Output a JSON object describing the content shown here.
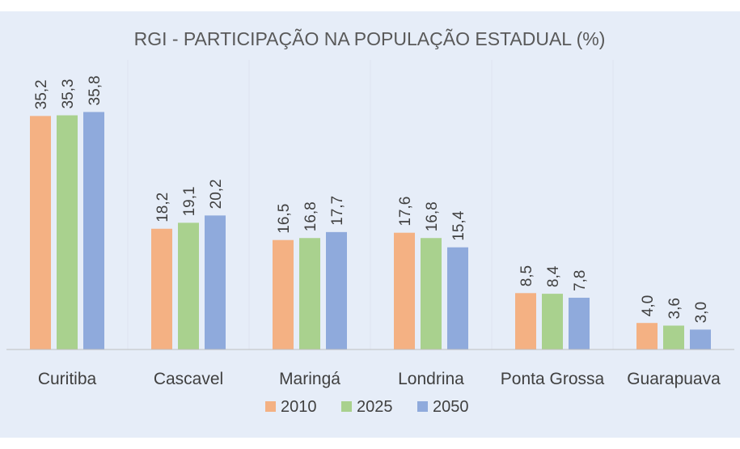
{
  "chart_data": {
    "type": "bar",
    "title": "RGI - PARTICIPAÇÃO NA POPULAÇÃO ESTADUAL (%)",
    "categories": [
      "Curitiba",
      "Cascavel",
      "Maringá",
      "Londrina",
      "Ponta Grossa",
      "Guarapuava"
    ],
    "series": [
      {
        "name": "2010",
        "color": "#f4b183",
        "values": [
          35.2,
          18.2,
          16.5,
          17.6,
          8.5,
          4.0
        ],
        "labels": [
          "35,2",
          "18,2",
          "16,5",
          "17,6",
          "8,5",
          "4,0"
        ]
      },
      {
        "name": "2025",
        "color": "#a9d18e",
        "values": [
          35.3,
          19.1,
          16.8,
          16.8,
          8.4,
          3.6
        ],
        "labels": [
          "35,3",
          "19,1",
          "16,8",
          "16,8",
          "8,4",
          "3,6"
        ]
      },
      {
        "name": "2050",
        "color": "#8faadc",
        "values": [
          35.8,
          20.2,
          17.7,
          15.4,
          7.8,
          3.0
        ],
        "labels": [
          "35,8",
          "20,2",
          "17,7",
          "15,4",
          "7,8",
          "3,0"
        ]
      }
    ],
    "xlabel": "",
    "ylabel": "",
    "ylim": [
      0,
      40
    ],
    "legend": "bottom",
    "grid": false
  }
}
